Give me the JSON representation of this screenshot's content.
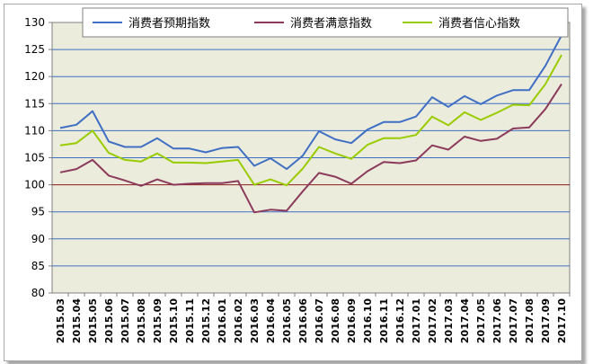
{
  "chart_data": {
    "type": "line",
    "title": "",
    "xlabel": "",
    "ylabel": "",
    "ylim": [
      80,
      130
    ],
    "yticks": [
      80,
      85,
      90,
      95,
      100,
      105,
      110,
      115,
      120,
      125,
      130
    ],
    "grid": "horizontal",
    "legend_position": "top",
    "categories": [
      "2015.03",
      "2015.04",
      "2015.05",
      "2015.06",
      "2015.07",
      "2015.08",
      "2015.09",
      "2015.10",
      "2015.11",
      "2015.12",
      "2016.01",
      "2016.02",
      "2016.03",
      "2016.04",
      "2016.05",
      "2016.06",
      "2016.07",
      "2016.08",
      "2016.09",
      "2016.10",
      "2016.11",
      "2016.12",
      "2017.01",
      "2017.02",
      "2017.03",
      "2017.04",
      "2017.05",
      "2017.06",
      "2017.07",
      "2017.08",
      "2017.09",
      "2017.10"
    ],
    "series": [
      {
        "name": "消费者预期指数",
        "color": "#3f6fc4",
        "values": [
          110.5,
          111.1,
          113.6,
          108.0,
          107.0,
          107.0,
          108.6,
          106.7,
          106.7,
          106.0,
          106.8,
          107.0,
          103.5,
          104.9,
          102.9,
          105.4,
          109.9,
          108.4,
          107.7,
          110.2,
          111.6,
          111.6,
          112.6,
          116.2,
          114.4,
          116.4,
          114.9,
          116.5,
          117.5,
          117.5,
          122.0,
          127.6
        ]
      },
      {
        "name": "消费者满意指数",
        "color": "#8b3a5c",
        "values": [
          102.3,
          102.9,
          104.6,
          101.7,
          100.8,
          99.8,
          101.0,
          100.0,
          100.2,
          100.3,
          100.3,
          100.7,
          94.9,
          95.4,
          95.2,
          98.8,
          102.2,
          101.5,
          100.2,
          102.5,
          104.2,
          104.0,
          104.5,
          107.3,
          106.5,
          108.9,
          108.1,
          108.5,
          110.4,
          110.6,
          114.0,
          118.6
        ]
      },
      {
        "name": "消费者信心指数",
        "color": "#99cc00",
        "values": [
          107.3,
          107.7,
          110.0,
          105.9,
          104.6,
          104.3,
          105.8,
          104.1,
          104.1,
          104.0,
          104.3,
          104.6,
          100.0,
          101.0,
          99.9,
          103.0,
          107.0,
          105.8,
          104.8,
          107.4,
          108.6,
          108.6,
          109.2,
          112.6,
          111.0,
          113.4,
          112.0,
          113.3,
          114.8,
          114.7,
          118.6,
          124.0
        ]
      }
    ],
    "reference_line": 100,
    "reference_line_color": "#8b1a1a",
    "plot_background": "#ececdc",
    "gridline_color": "#3f6fc4"
  }
}
